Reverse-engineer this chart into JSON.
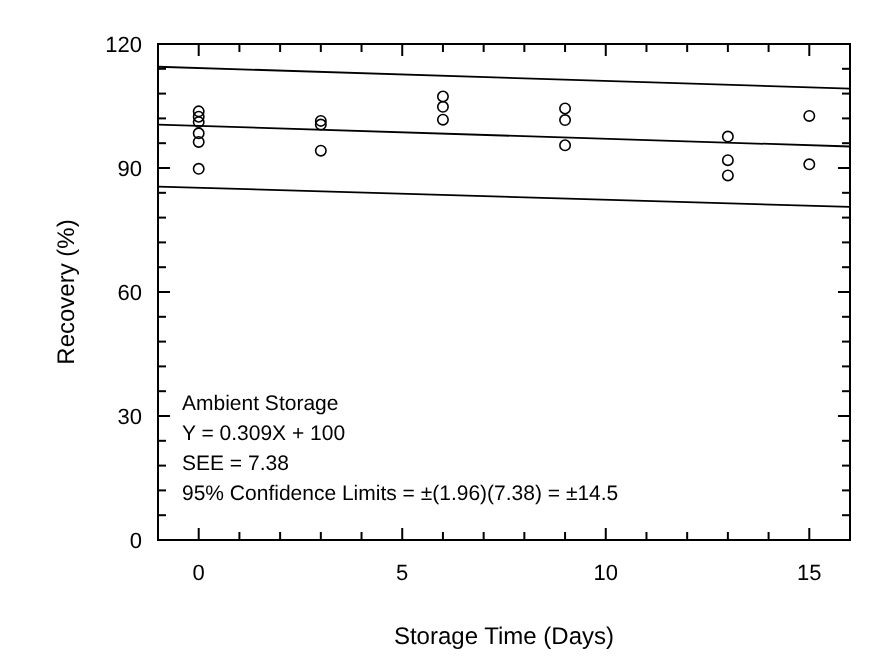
{
  "chart_data": {
    "type": "scatter",
    "xlabel": "Storage Time (Days)",
    "ylabel": "Recovery (%)",
    "xlim": [
      -1,
      16
    ],
    "ylim": [
      0,
      120
    ],
    "xticks": [
      0,
      {
        "value": 1,
        "label": null
      },
      {
        "value": 2,
        "label": null
      },
      {
        "value": 3,
        "label": null
      },
      {
        "value": 4,
        "label": null
      },
      5,
      {
        "value": 6,
        "label": null
      },
      {
        "value": 7,
        "label": null
      },
      {
        "value": 8,
        "label": null
      },
      {
        "value": 9,
        "label": null
      },
      10,
      {
        "value": 11,
        "label": null
      },
      {
        "value": 12,
        "label": null
      },
      {
        "value": 13,
        "label": null
      },
      {
        "value": 14,
        "label": null
      },
      15
    ],
    "yticks": [
      0,
      {
        "value": 6,
        "label": null
      },
      {
        "value": 12,
        "label": null
      },
      {
        "value": 18,
        "label": null
      },
      {
        "value": 24,
        "label": null
      },
      30,
      {
        "value": 36,
        "label": null
      },
      {
        "value": 42,
        "label": null
      },
      {
        "value": 48,
        "label": null
      },
      {
        "value": 54,
        "label": null
      },
      60,
      {
        "value": 66,
        "label": null
      },
      {
        "value": 72,
        "label": null
      },
      {
        "value": 78,
        "label": null
      },
      {
        "value": 84,
        "label": null
      },
      90,
      {
        "value": 96,
        "label": null
      },
      {
        "value": 102,
        "label": null
      },
      {
        "value": 108,
        "label": null
      },
      {
        "value": 114,
        "label": null
      },
      120
    ],
    "grid": false,
    "series": [
      {
        "color": "#000000",
        "marker": "circle",
        "x": [
          0,
          0,
          0,
          0,
          0,
          0,
          3,
          3,
          3,
          6,
          6,
          6,
          9,
          9,
          9,
          13,
          13,
          13,
          15,
          15
        ],
        "values": [
          103.7,
          102.4,
          101.1,
          98.4,
          96.3,
          89.8,
          101.4,
          100.5,
          94.2,
          107.3,
          104.8,
          101.7,
          104.4,
          101.6,
          95.5,
          97.6,
          91.9,
          88.2,
          102.6,
          90.9
        ]
      },
      {
        "type": "line",
        "color": "#000000",
        "x": [
          -1,
          16
        ],
        "values": [
          114.5,
          109.2
        ],
        "marker": "none"
      },
      {
        "type": "line",
        "color": "#000000",
        "x": [
          -1,
          16
        ],
        "values": [
          100.5,
          95.2
        ],
        "marker": "none"
      },
      {
        "type": "line",
        "color": "#000000",
        "x": [
          -1,
          16
        ],
        "values": [
          85.5,
          80.6
        ],
        "marker": "none"
      }
    ],
    "annotations": [
      "Ambient Storage",
      "Y = 0.309X + 100",
      "SEE = 7.38",
      "95% Confidence Limits = ±(1.96)(7.38) = ±14.5"
    ]
  }
}
